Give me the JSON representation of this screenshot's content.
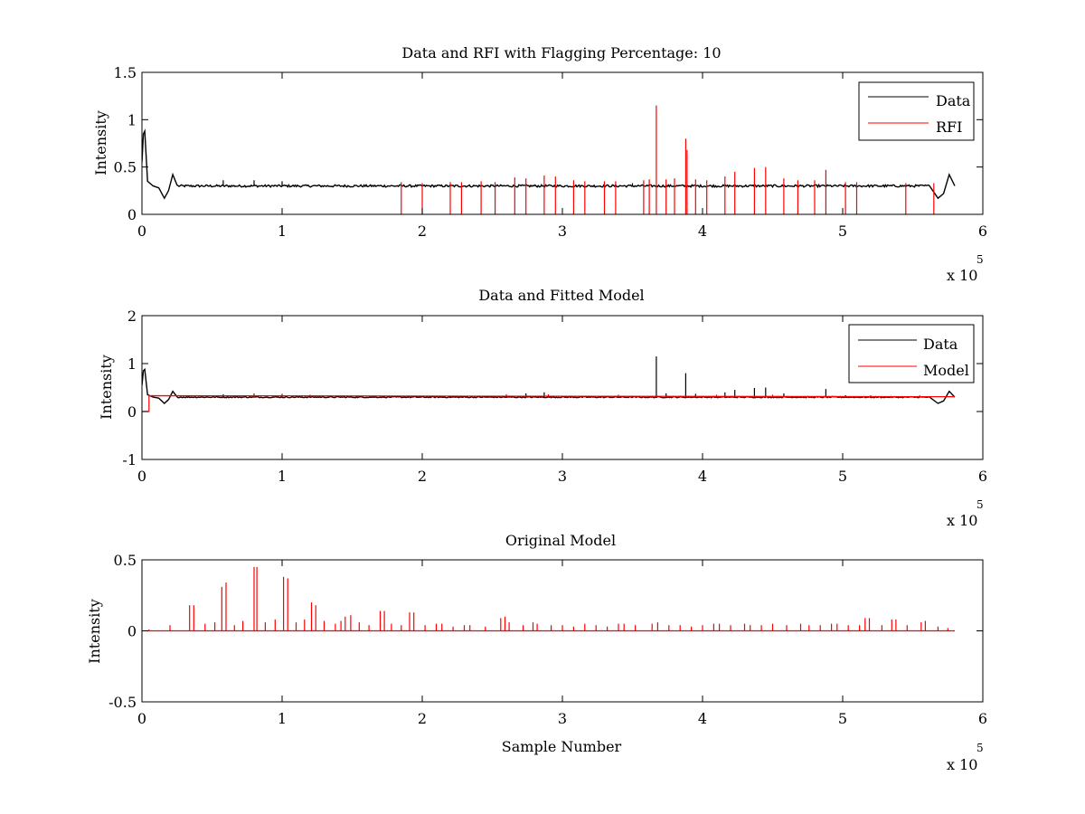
{
  "figure": {
    "background": "#ffffff"
  },
  "chart_data": [
    {
      "type": "line",
      "title": "Data and RFI with Flagging Percentage: 10",
      "xlabel": "",
      "ylabel": "Intensity",
      "xlim": [
        0,
        6
      ],
      "ylim": [
        0,
        1.5
      ],
      "x_exponent_base": "x 10",
      "x_exponent_power": "5",
      "xticks": [
        0,
        1,
        2,
        3,
        4,
        5,
        6
      ],
      "xtick_labels": [
        "0",
        "1",
        "2",
        "3",
        "4",
        "5",
        "6"
      ],
      "yticks": [
        0,
        0.5,
        1,
        1.5
      ],
      "ytick_labels": [
        "0",
        "0.5",
        "1",
        "1.5"
      ],
      "legend": {
        "placement": "top-right",
        "entries": [
          {
            "label": "Data",
            "color": "#000000"
          },
          {
            "label": "RFI",
            "color": "#ff0000"
          }
        ]
      },
      "series": [
        {
          "name": "Data",
          "color": "#000000",
          "baseline": 0.3,
          "noise": 0.012,
          "x_end": 5.8,
          "features": [
            {
              "x": 0.0,
              "y": 0.55
            },
            {
              "x": 0.01,
              "y": 0.85
            },
            {
              "x": 0.02,
              "y": 0.88
            },
            {
              "x": 0.04,
              "y": 0.35
            },
            {
              "x": 0.08,
              "y": 0.3
            },
            {
              "x": 0.12,
              "y": 0.28
            },
            {
              "x": 0.16,
              "y": 0.17
            },
            {
              "x": 0.19,
              "y": 0.25
            },
            {
              "x": 0.22,
              "y": 0.42
            },
            {
              "x": 0.25,
              "y": 0.31
            },
            {
              "x": 5.62,
              "y": 0.3
            },
            {
              "x": 5.68,
              "y": 0.17
            },
            {
              "x": 5.72,
              "y": 0.22
            },
            {
              "x": 5.76,
              "y": 0.42
            },
            {
              "x": 5.8,
              "y": 0.3
            }
          ],
          "spikes": [
            {
              "x": 0.58,
              "y": 0.36
            },
            {
              "x": 0.8,
              "y": 0.36
            },
            {
              "x": 1.0,
              "y": 0.35
            },
            {
              "x": 3.5,
              "y": 0.33
            }
          ]
        },
        {
          "name": "RFI",
          "color": "#ff0000",
          "spikes": [
            {
              "x": 1.85,
              "y": 0.34
            },
            {
              "x": 2.0,
              "y": 0.33
            },
            {
              "x": 2.2,
              "y": 0.34
            },
            {
              "x": 2.28,
              "y": 0.34
            },
            {
              "x": 2.42,
              "y": 0.35
            },
            {
              "x": 2.52,
              "y": 0.34
            },
            {
              "x": 2.66,
              "y": 0.39
            },
            {
              "x": 2.74,
              "y": 0.38
            },
            {
              "x": 2.87,
              "y": 0.41
            },
            {
              "x": 2.95,
              "y": 0.4
            },
            {
              "x": 3.08,
              "y": 0.36
            },
            {
              "x": 3.16,
              "y": 0.35
            },
            {
              "x": 3.3,
              "y": 0.35
            },
            {
              "x": 3.38,
              "y": 0.35
            },
            {
              "x": 3.58,
              "y": 0.36
            },
            {
              "x": 3.62,
              "y": 0.37
            },
            {
              "x": 3.67,
              "y": 1.15
            },
            {
              "x": 3.74,
              "y": 0.37
            },
            {
              "x": 3.8,
              "y": 0.38
            },
            {
              "x": 3.88,
              "y": 0.8
            },
            {
              "x": 3.89,
              "y": 0.68
            },
            {
              "x": 3.95,
              "y": 0.37
            },
            {
              "x": 4.03,
              "y": 0.36
            },
            {
              "x": 4.16,
              "y": 0.4
            },
            {
              "x": 4.23,
              "y": 0.45
            },
            {
              "x": 4.37,
              "y": 0.49
            },
            {
              "x": 4.45,
              "y": 0.5
            },
            {
              "x": 4.58,
              "y": 0.38
            },
            {
              "x": 4.68,
              "y": 0.36
            },
            {
              "x": 4.8,
              "y": 0.36
            },
            {
              "x": 4.88,
              "y": 0.47
            },
            {
              "x": 5.02,
              "y": 0.34
            },
            {
              "x": 5.1,
              "y": 0.34
            },
            {
              "x": 5.45,
              "y": 0.33
            },
            {
              "x": 5.65,
              "y": 0.33
            }
          ]
        }
      ]
    },
    {
      "type": "line",
      "title": "Data and Fitted Model",
      "xlabel": "",
      "ylabel": "Intensity",
      "xlim": [
        0,
        6
      ],
      "ylim": [
        -1,
        2
      ],
      "x_exponent_base": "x 10",
      "x_exponent_power": "5",
      "xticks": [
        0,
        1,
        2,
        3,
        4,
        5,
        6
      ],
      "xtick_labels": [
        "0",
        "1",
        "2",
        "3",
        "4",
        "5",
        "6"
      ],
      "yticks": [
        -1,
        0,
        1,
        2
      ],
      "ytick_labels": [
        "-1",
        "0",
        "1",
        "2"
      ],
      "legend": {
        "placement": "top-right",
        "entries": [
          {
            "label": "Data",
            "color": "#000000"
          },
          {
            "label": "Model",
            "color": "#ff0000"
          }
        ]
      },
      "series": [
        {
          "name": "Data",
          "color": "#000000",
          "baseline": 0.3,
          "noise": 0.012,
          "x_end": 5.8,
          "features": [
            {
              "x": 0.0,
              "y": 0.55
            },
            {
              "x": 0.01,
              "y": 0.85
            },
            {
              "x": 0.02,
              "y": 0.88
            },
            {
              "x": 0.04,
              "y": 0.35
            },
            {
              "x": 0.08,
              "y": 0.3
            },
            {
              "x": 0.12,
              "y": 0.28
            },
            {
              "x": 0.16,
              "y": 0.17
            },
            {
              "x": 0.19,
              "y": 0.25
            },
            {
              "x": 0.22,
              "y": 0.42
            },
            {
              "x": 0.25,
              "y": 0.31
            },
            {
              "x": 5.62,
              "y": 0.3
            },
            {
              "x": 5.68,
              "y": 0.17
            },
            {
              "x": 5.72,
              "y": 0.22
            },
            {
              "x": 5.76,
              "y": 0.42
            },
            {
              "x": 5.8,
              "y": 0.3
            }
          ],
          "spikes": [
            {
              "x": 0.58,
              "y": 0.36
            },
            {
              "x": 0.8,
              "y": 0.37
            },
            {
              "x": 1.0,
              "y": 0.36
            },
            {
              "x": 2.74,
              "y": 0.38
            },
            {
              "x": 2.87,
              "y": 0.4
            },
            {
              "x": 3.5,
              "y": 0.33
            },
            {
              "x": 3.67,
              "y": 1.15
            },
            {
              "x": 3.74,
              "y": 0.38
            },
            {
              "x": 3.88,
              "y": 0.8
            },
            {
              "x": 3.95,
              "y": 0.37
            },
            {
              "x": 4.16,
              "y": 0.4
            },
            {
              "x": 4.23,
              "y": 0.45
            },
            {
              "x": 4.37,
              "y": 0.49
            },
            {
              "x": 4.45,
              "y": 0.5
            },
            {
              "x": 4.58,
              "y": 0.38
            },
            {
              "x": 4.88,
              "y": 0.47
            },
            {
              "x": 5.02,
              "y": 0.34
            }
          ]
        },
        {
          "name": "Model",
          "color": "#ff0000",
          "points": [
            {
              "x": 0.0,
              "y": 0.0
            },
            {
              "x": 0.05,
              "y": 0.0
            },
            {
              "x": 0.05,
              "y": 0.33
            },
            {
              "x": 5.8,
              "y": 0.31
            }
          ],
          "spikes": [
            {
              "x": 0.8,
              "y": 0.38
            },
            {
              "x": 1.0,
              "y": 0.37
            },
            {
              "x": 1.2,
              "y": 0.35
            },
            {
              "x": 2.6,
              "y": 0.36
            },
            {
              "x": 2.9,
              "y": 0.36
            },
            {
              "x": 3.4,
              "y": 0.35
            },
            {
              "x": 4.1,
              "y": 0.35
            },
            {
              "x": 4.5,
              "y": 0.35
            },
            {
              "x": 5.2,
              "y": 0.34
            },
            {
              "x": 5.55,
              "y": 0.34
            }
          ]
        }
      ]
    },
    {
      "type": "line",
      "title": "Original Model",
      "xlabel": "Sample Number",
      "ylabel": "Intensity",
      "xlim": [
        0,
        6
      ],
      "ylim": [
        -0.5,
        0.5
      ],
      "x_exponent_base": "x 10",
      "x_exponent_power": "5",
      "xticks": [
        0,
        1,
        2,
        3,
        4,
        5,
        6
      ],
      "xtick_labels": [
        "0",
        "1",
        "2",
        "3",
        "4",
        "5",
        "6"
      ],
      "yticks": [
        -0.5,
        0,
        0.5
      ],
      "ytick_labels": [
        "-0.5",
        "0",
        "0.5"
      ],
      "series": [
        {
          "color": "#ff0000",
          "baseline": 0.0,
          "x_end": 5.8,
          "spikes": [
            {
              "x": 0.05,
              "y": 0.01
            },
            {
              "x": 0.34,
              "y": 0.18
            },
            {
              "x": 0.37,
              "y": 0.18
            },
            {
              "x": 0.57,
              "y": 0.31
            },
            {
              "x": 0.6,
              "y": 0.34
            },
            {
              "x": 0.8,
              "y": 0.45
            },
            {
              "x": 0.82,
              "y": 0.45
            },
            {
              "x": 1.01,
              "y": 0.38
            },
            {
              "x": 1.04,
              "y": 0.37
            },
            {
              "x": 1.21,
              "y": 0.2
            },
            {
              "x": 1.24,
              "y": 0.18
            },
            {
              "x": 1.45,
              "y": 0.1
            },
            {
              "x": 1.49,
              "y": 0.11
            },
            {
              "x": 1.7,
              "y": 0.14
            },
            {
              "x": 1.73,
              "y": 0.14
            },
            {
              "x": 1.91,
              "y": 0.13
            },
            {
              "x": 1.94,
              "y": 0.13
            },
            {
              "x": 0.2,
              "y": 0.04
            },
            {
              "x": 0.45,
              "y": 0.05
            },
            {
              "x": 0.52,
              "y": 0.06
            },
            {
              "x": 0.66,
              "y": 0.04
            },
            {
              "x": 0.72,
              "y": 0.07
            },
            {
              "x": 0.88,
              "y": 0.06
            },
            {
              "x": 0.95,
              "y": 0.08
            },
            {
              "x": 1.1,
              "y": 0.06
            },
            {
              "x": 1.16,
              "y": 0.08
            },
            {
              "x": 1.3,
              "y": 0.07
            },
            {
              "x": 1.38,
              "y": 0.05
            },
            {
              "x": 1.42,
              "y": 0.07
            },
            {
              "x": 1.55,
              "y": 0.06
            },
            {
              "x": 1.62,
              "y": 0.04
            },
            {
              "x": 1.78,
              "y": 0.05
            },
            {
              "x": 1.85,
              "y": 0.04
            },
            {
              "x": 2.02,
              "y": 0.04
            },
            {
              "x": 2.1,
              "y": 0.05
            },
            {
              "x": 2.14,
              "y": 0.05
            },
            {
              "x": 2.22,
              "y": 0.03
            },
            {
              "x": 2.3,
              "y": 0.04
            },
            {
              "x": 2.34,
              "y": 0.04
            },
            {
              "x": 2.45,
              "y": 0.03
            },
            {
              "x": 2.56,
              "y": 0.09
            },
            {
              "x": 2.59,
              "y": 0.1
            },
            {
              "x": 2.62,
              "y": 0.06
            },
            {
              "x": 2.72,
              "y": 0.04
            },
            {
              "x": 2.79,
              "y": 0.06
            },
            {
              "x": 2.82,
              "y": 0.05
            },
            {
              "x": 2.92,
              "y": 0.04
            },
            {
              "x": 3.0,
              "y": 0.04
            },
            {
              "x": 3.08,
              "y": 0.03
            },
            {
              "x": 3.16,
              "y": 0.05
            },
            {
              "x": 3.24,
              "y": 0.04
            },
            {
              "x": 3.32,
              "y": 0.03
            },
            {
              "x": 3.4,
              "y": 0.05
            },
            {
              "x": 3.44,
              "y": 0.05
            },
            {
              "x": 3.52,
              "y": 0.04
            },
            {
              "x": 3.64,
              "y": 0.05
            },
            {
              "x": 3.68,
              "y": 0.06
            },
            {
              "x": 3.76,
              "y": 0.04
            },
            {
              "x": 3.84,
              "y": 0.04
            },
            {
              "x": 3.92,
              "y": 0.03
            },
            {
              "x": 4.0,
              "y": 0.04
            },
            {
              "x": 4.08,
              "y": 0.05
            },
            {
              "x": 4.12,
              "y": 0.05
            },
            {
              "x": 4.2,
              "y": 0.04
            },
            {
              "x": 4.3,
              "y": 0.05
            },
            {
              "x": 4.34,
              "y": 0.04
            },
            {
              "x": 4.42,
              "y": 0.04
            },
            {
              "x": 4.5,
              "y": 0.05
            },
            {
              "x": 4.6,
              "y": 0.04
            },
            {
              "x": 4.7,
              "y": 0.05
            },
            {
              "x": 4.76,
              "y": 0.04
            },
            {
              "x": 4.84,
              "y": 0.04
            },
            {
              "x": 4.92,
              "y": 0.05
            },
            {
              "x": 4.96,
              "y": 0.05
            },
            {
              "x": 5.04,
              "y": 0.04
            },
            {
              "x": 5.12,
              "y": 0.04
            },
            {
              "x": 5.16,
              "y": 0.09
            },
            {
              "x": 5.19,
              "y": 0.09
            },
            {
              "x": 5.28,
              "y": 0.04
            },
            {
              "x": 5.35,
              "y": 0.08
            },
            {
              "x": 5.38,
              "y": 0.08
            },
            {
              "x": 5.46,
              "y": 0.04
            },
            {
              "x": 5.56,
              "y": 0.06
            },
            {
              "x": 5.59,
              "y": 0.07
            },
            {
              "x": 5.68,
              "y": 0.03
            },
            {
              "x": 5.75,
              "y": 0.02
            }
          ]
        }
      ]
    }
  ]
}
